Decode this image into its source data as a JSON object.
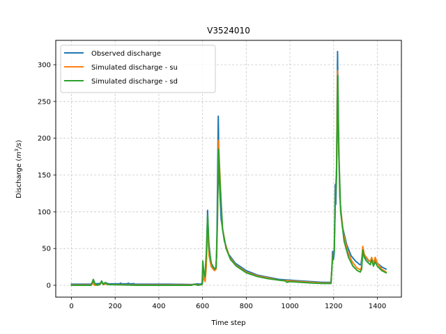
{
  "chart_data": {
    "type": "line",
    "title": "V3524010",
    "xlabel": "Time step",
    "ylabel": "Discharge (m³/s)",
    "ylabel_parts": {
      "prefix": "Discharge (",
      "var": "m",
      "sup": "3",
      "suffix": "/s)"
    },
    "xlim": [
      -70,
      1510
    ],
    "ylim": [
      -15,
      332
    ],
    "xticks": [
      0,
      200,
      400,
      600,
      800,
      1000,
      1200,
      1400
    ],
    "yticks": [
      0,
      50,
      100,
      150,
      200,
      250,
      300
    ],
    "grid": true,
    "grid_style": "dashed",
    "legend_position": "upper left",
    "series": [
      {
        "name": "Observed discharge",
        "color": "#1f77b4",
        "points": [
          [
            0,
            1.5
          ],
          [
            90,
            1.5
          ],
          [
            100,
            4
          ],
          [
            108,
            2
          ],
          [
            130,
            2.5
          ],
          [
            140,
            4
          ],
          [
            150,
            2
          ],
          [
            160,
            3
          ],
          [
            170,
            2
          ],
          [
            220,
            2
          ],
          [
            225,
            3
          ],
          [
            230,
            2
          ],
          [
            255,
            2
          ],
          [
            260,
            3
          ],
          [
            265,
            2
          ],
          [
            280,
            2
          ],
          [
            285,
            2.5
          ],
          [
            290,
            1.5
          ],
          [
            400,
            1.5
          ],
          [
            450,
            1.5
          ],
          [
            560,
            1
          ],
          [
            575,
            2
          ],
          [
            590,
            1.5
          ],
          [
            600,
            3
          ],
          [
            603,
            20
          ],
          [
            608,
            12
          ],
          [
            612,
            10
          ],
          [
            617,
            30
          ],
          [
            623,
            102
          ],
          [
            628,
            60
          ],
          [
            638,
            30
          ],
          [
            650,
            24
          ],
          [
            660,
            22
          ],
          [
            665,
            40
          ],
          [
            672,
            230
          ],
          [
            676,
            150
          ],
          [
            685,
            90
          ],
          [
            700,
            60
          ],
          [
            720,
            42
          ],
          [
            750,
            30
          ],
          [
            800,
            20
          ],
          [
            850,
            14
          ],
          [
            900,
            11
          ],
          [
            950,
            8
          ],
          [
            1000,
            7
          ],
          [
            1050,
            6
          ],
          [
            1100,
            5
          ],
          [
            1150,
            4
          ],
          [
            1188,
            4
          ],
          [
            1193,
            30
          ],
          [
            1195,
            46
          ],
          [
            1199,
            35
          ],
          [
            1203,
            45
          ],
          [
            1207,
            137
          ],
          [
            1210,
            110
          ],
          [
            1213,
            150
          ],
          [
            1218,
            318
          ],
          [
            1222,
            200
          ],
          [
            1228,
            120
          ],
          [
            1240,
            80
          ],
          [
            1260,
            55
          ],
          [
            1280,
            40
          ],
          [
            1300,
            33
          ],
          [
            1320,
            28
          ],
          [
            1325,
            28
          ],
          [
            1333,
            48
          ],
          [
            1340,
            40
          ],
          [
            1350,
            37
          ],
          [
            1360,
            33
          ],
          [
            1370,
            32
          ],
          [
            1375,
            36
          ],
          [
            1382,
            30
          ],
          [
            1392,
            36
          ],
          [
            1400,
            30
          ],
          [
            1420,
            25
          ],
          [
            1440,
            22
          ]
        ]
      },
      {
        "name": "Simulated discharge - su",
        "color": "#ff7f0e",
        "points": [
          [
            0,
            0.5
          ],
          [
            90,
            0.5
          ],
          [
            100,
            3
          ],
          [
            105,
            0
          ],
          [
            130,
            1
          ],
          [
            140,
            4
          ],
          [
            150,
            1
          ],
          [
            160,
            2
          ],
          [
            170,
            1
          ],
          [
            300,
            0.5
          ],
          [
            550,
            0.5
          ],
          [
            560,
            1.5
          ],
          [
            580,
            0.5
          ],
          [
            598,
            1
          ],
          [
            602,
            20
          ],
          [
            607,
            8
          ],
          [
            612,
            5
          ],
          [
            617,
            25
          ],
          [
            623,
            85
          ],
          [
            630,
            40
          ],
          [
            640,
            25
          ],
          [
            655,
            20
          ],
          [
            662,
            22
          ],
          [
            668,
            80
          ],
          [
            673,
            197
          ],
          [
            678,
            160
          ],
          [
            690,
            80
          ],
          [
            705,
            55
          ],
          [
            725,
            38
          ],
          [
            750,
            28
          ],
          [
            800,
            18
          ],
          [
            850,
            13
          ],
          [
            900,
            10
          ],
          [
            950,
            7
          ],
          [
            1000,
            6
          ],
          [
            1050,
            5
          ],
          [
            1100,
            4
          ],
          [
            1150,
            3
          ],
          [
            1188,
            3
          ],
          [
            1193,
            30
          ],
          [
            1197,
            40
          ],
          [
            1203,
            50
          ],
          [
            1208,
            120
          ],
          [
            1213,
            160
          ],
          [
            1218,
            292
          ],
          [
            1223,
            190
          ],
          [
            1230,
            110
          ],
          [
            1245,
            70
          ],
          [
            1265,
            45
          ],
          [
            1285,
            32
          ],
          [
            1305,
            24
          ],
          [
            1322,
            21
          ],
          [
            1327,
            24
          ],
          [
            1333,
            53
          ],
          [
            1340,
            42
          ],
          [
            1350,
            38
          ],
          [
            1360,
            34
          ],
          [
            1368,
            32
          ],
          [
            1374,
            38
          ],
          [
            1382,
            30
          ],
          [
            1390,
            38
          ],
          [
            1400,
            30
          ],
          [
            1420,
            22
          ],
          [
            1440,
            18
          ]
        ]
      },
      {
        "name": "Simulated discharge - sd",
        "color": "#2ca02c",
        "points": [
          [
            0,
            0
          ],
          [
            90,
            0
          ],
          [
            100,
            8
          ],
          [
            108,
            2
          ],
          [
            118,
            0
          ],
          [
            130,
            1
          ],
          [
            138,
            6
          ],
          [
            145,
            1
          ],
          [
            155,
            4
          ],
          [
            165,
            1
          ],
          [
            300,
            0
          ],
          [
            550,
            0
          ],
          [
            560,
            1.5
          ],
          [
            580,
            0
          ],
          [
            598,
            1
          ],
          [
            601,
            33
          ],
          [
            606,
            18
          ],
          [
            611,
            12
          ],
          [
            617,
            42
          ],
          [
            623,
            95
          ],
          [
            630,
            50
          ],
          [
            640,
            30
          ],
          [
            655,
            22
          ],
          [
            662,
            24
          ],
          [
            668,
            90
          ],
          [
            674,
            185
          ],
          [
            680,
            140
          ],
          [
            692,
            75
          ],
          [
            708,
            50
          ],
          [
            728,
            35
          ],
          [
            755,
            26
          ],
          [
            800,
            17
          ],
          [
            850,
            12
          ],
          [
            900,
            9
          ],
          [
            950,
            7
          ],
          [
            980,
            6
          ],
          [
            985,
            4
          ],
          [
            1000,
            5
          ],
          [
            1050,
            4
          ],
          [
            1100,
            3
          ],
          [
            1150,
            2.5
          ],
          [
            1188,
            2.5
          ],
          [
            1193,
            28
          ],
          [
            1197,
            38
          ],
          [
            1203,
            48
          ],
          [
            1208,
            120
          ],
          [
            1213,
            150
          ],
          [
            1219,
            285
          ],
          [
            1224,
            180
          ],
          [
            1232,
            100
          ],
          [
            1248,
            60
          ],
          [
            1268,
            38
          ],
          [
            1288,
            26
          ],
          [
            1308,
            20
          ],
          [
            1322,
            18
          ],
          [
            1328,
            22
          ],
          [
            1334,
            48
          ],
          [
            1340,
            38
          ],
          [
            1350,
            33
          ],
          [
            1360,
            30
          ],
          [
            1368,
            28
          ],
          [
            1374,
            35
          ],
          [
            1382,
            26
          ],
          [
            1390,
            32
          ],
          [
            1400,
            26
          ],
          [
            1420,
            20
          ],
          [
            1440,
            17
          ]
        ]
      }
    ]
  }
}
